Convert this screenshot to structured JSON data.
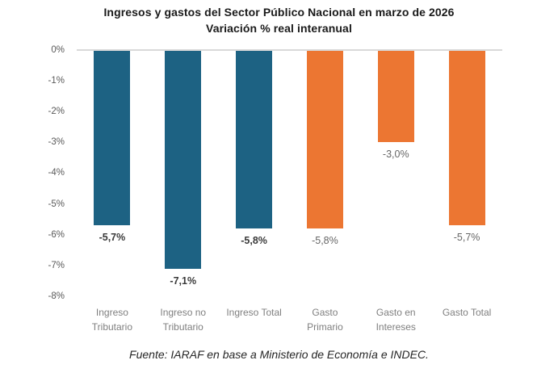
{
  "chart": {
    "title_line1": "Ingresos y gastos del Sector Público Nacional en marzo de 2026",
    "title_line2": "Variación % real interanual",
    "source": "Fuente: IARAF en base a Ministerio de Economía e INDEC."
  },
  "chart_data": {
    "type": "bar",
    "title": "Ingresos y gastos del Sector Público Nacional en marzo de 2026",
    "subtitle": "Variación % real interanual",
    "categories": [
      "Ingreso Tributario",
      "Ingreso no Tributario",
      "Ingreso Total",
      "Gasto Primario",
      "Gasto en Intereses",
      "Gasto Total"
    ],
    "category_lines": [
      [
        "Ingreso",
        "Tributario"
      ],
      [
        "Ingreso no",
        "Tributario"
      ],
      [
        "Ingreso Total"
      ],
      [
        "Gasto",
        "Primario"
      ],
      [
        "Gasto en",
        "Intereses"
      ],
      [
        "Gasto Total"
      ]
    ],
    "values": [
      -5.7,
      -7.1,
      -5.8,
      -5.8,
      -3.0,
      -5.7
    ],
    "value_labels": [
      "-5,7%",
      "-7,1%",
      "-5,8%",
      "-5,8%",
      "-3,0%",
      "-5,7%"
    ],
    "value_label_bold": [
      true,
      true,
      true,
      false,
      false,
      false
    ],
    "bar_colors": [
      "#1d6283",
      "#1d6283",
      "#1d6283",
      "#ec7632",
      "#ec7632",
      "#ec7632"
    ],
    "series_colors": {
      "ingresos": "#1d6283",
      "gastos": "#ec7632"
    },
    "xlabel": "",
    "ylabel": "",
    "ylim": [
      -8,
      0
    ],
    "y_axis": {
      "ticks": [
        "0%",
        "-1%",
        "-2%",
        "-3%",
        "-4%",
        "-5%",
        "-6%",
        "-7%",
        "-8%"
      ],
      "tick_values": [
        0,
        -1,
        -2,
        -3,
        -4,
        -5,
        -6,
        -7,
        -8
      ]
    },
    "grid": "horizontal line at 0% only",
    "legend": "none",
    "source": "Fuente: IARAF en base a Ministerio de Economía e INDEC."
  }
}
